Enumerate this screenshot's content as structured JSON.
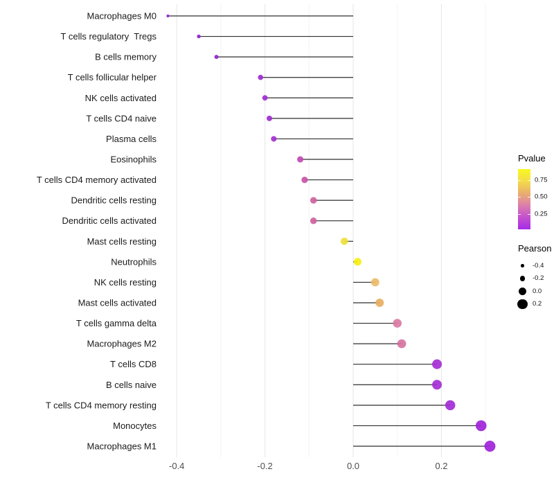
{
  "chart_data": {
    "type": "lollipop",
    "title": "",
    "xlabel": "",
    "ylabel": "",
    "orientation": "horizontal",
    "grid": "vertical-only",
    "x_axis": {
      "range": [
        -0.45,
        0.35
      ],
      "major_ticks": [
        {
          "value": -0.4,
          "label": "-0.4"
        },
        {
          "value": -0.2,
          "label": "-0.2"
        },
        {
          "value": 0.0,
          "label": "0.0"
        },
        {
          "value": 0.2,
          "label": "0.2"
        }
      ],
      "minor_ticks": [
        -0.3,
        -0.1,
        0.1,
        0.3
      ]
    },
    "baseline_value": 0.0,
    "rows": [
      {
        "label": "Macrophages M0",
        "pearson": -0.42,
        "pvalue": 0.05,
        "color": "#8E24CE"
      },
      {
        "label": "T cells regulatory  Tregs",
        "pearson": -0.35,
        "pvalue": 0.1,
        "color": "#8C25C9"
      },
      {
        "label": "B cells memory",
        "pearson": -0.31,
        "pvalue": 0.14,
        "color": "#9326CE"
      },
      {
        "label": "T cells follicular helper",
        "pearson": -0.21,
        "pvalue": 0.17,
        "color": "#9D2BD1"
      },
      {
        "label": "NK cells activated",
        "pearson": -0.2,
        "pvalue": 0.18,
        "color": "#A02DD3"
      },
      {
        "label": "T cells CD4 naive",
        "pearson": -0.19,
        "pvalue": 0.18,
        "color": "#A02DD3"
      },
      {
        "label": "Plasma cells",
        "pearson": -0.18,
        "pvalue": 0.21,
        "color": "#A431CF"
      },
      {
        "label": "Eosinophils",
        "pearson": -0.12,
        "pvalue": 0.34,
        "color": "#C249B4"
      },
      {
        "label": "T cells CD4 memory activated",
        "pearson": -0.11,
        "pvalue": 0.38,
        "color": "#C854A7"
      },
      {
        "label": "Dendritic cells resting",
        "pearson": -0.09,
        "pvalue": 0.44,
        "color": "#CF639E"
      },
      {
        "label": "Dendritic cells activated",
        "pearson": -0.09,
        "pvalue": 0.44,
        "color": "#CF639E"
      },
      {
        "label": "Mast cells resting",
        "pearson": -0.02,
        "pvalue": 0.8,
        "color": "#EFE03A"
      },
      {
        "label": "Neutrophils",
        "pearson": 0.01,
        "pvalue": 0.88,
        "color": "#F5F014"
      },
      {
        "label": "NK cells resting",
        "pearson": 0.05,
        "pvalue": 0.62,
        "color": "#EBBC68"
      },
      {
        "label": "Mast cells activated",
        "pearson": 0.06,
        "pvalue": 0.58,
        "color": "#E9AE60"
      },
      {
        "label": "T cells gamma delta",
        "pearson": 0.1,
        "pvalue": 0.46,
        "color": "#DB7AA4"
      },
      {
        "label": "Macrophages M2",
        "pearson": 0.11,
        "pvalue": 0.44,
        "color": "#D7729F"
      },
      {
        "label": "T cells CD8",
        "pearson": 0.19,
        "pvalue": 0.17,
        "color": "#A52FD4"
      },
      {
        "label": "B cells naive",
        "pearson": 0.19,
        "pvalue": 0.17,
        "color": "#A52FD4"
      },
      {
        "label": "T cells CD4 memory resting",
        "pearson": 0.22,
        "pvalue": 0.15,
        "color": "#A32BD6"
      },
      {
        "label": "Monocytes",
        "pearson": 0.29,
        "pvalue": 0.08,
        "color": "#9F23D9"
      },
      {
        "label": "Macrophages M1",
        "pearson": 0.31,
        "pvalue": 0.07,
        "color": "#9F23D9"
      }
    ]
  },
  "legends": {
    "pvalue": {
      "title": "Pvalue",
      "bar_range": [
        0.02,
        0.91
      ],
      "ticks": [
        {
          "value": 0.75,
          "label": "0.75"
        },
        {
          "value": 0.5,
          "label": "0.50"
        },
        {
          "value": 0.25,
          "label": "0.25"
        }
      ],
      "gradient_bottom_to_top": [
        "#A62BE8",
        "#C351CE",
        "#DC7FAC",
        "#EAAF6E",
        "#F3DC49",
        "#F9F821"
      ]
    },
    "pearson": {
      "title": "Pearson",
      "items": [
        {
          "value": -0.4,
          "label": "-0.4"
        },
        {
          "value": -0.2,
          "label": "-0.2"
        },
        {
          "value": 0.0,
          "label": "0.0"
        },
        {
          "value": 0.2,
          "label": "0.2"
        }
      ]
    }
  },
  "style": {
    "background": "#FFFFFF",
    "stem_color": "#2E2E2E",
    "grid_major_color": "#E6E6E6",
    "grid_minor_color": "#F3F3F3",
    "y_label_color": "#1A1A1A",
    "x_label_color": "#4D4D4D",
    "dot_opacity": 0.92
  }
}
